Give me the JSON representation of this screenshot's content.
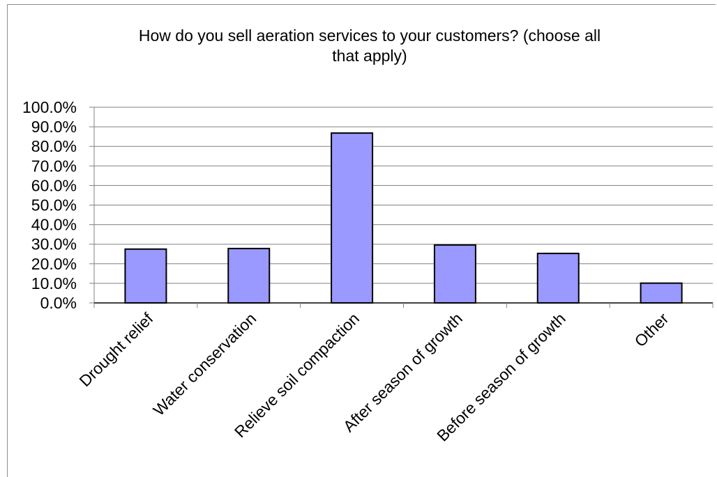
{
  "chart_data": {
    "type": "bar",
    "title": "How do you sell aeration services to your customers? (choose all\nthat apply)",
    "categories": [
      "Drought relief",
      "Water conservation",
      "Relieve soil compaction",
      "After season of growth",
      "Before season of growth",
      "Other"
    ],
    "values": [
      0.275,
      0.278,
      0.868,
      0.296,
      0.253,
      0.101
    ],
    "ylim": [
      0,
      1.0
    ],
    "yticks": [
      "0.0%",
      "10.0%",
      "20.0%",
      "30.0%",
      "40.0%",
      "50.0%",
      "60.0%",
      "70.0%",
      "80.0%",
      "90.0%",
      "100.0%"
    ],
    "xlabel": "",
    "ylabel": "",
    "grid": true,
    "bar_color": "#9999ff",
    "bar_border_color": "#000000",
    "gridline_color": "#808080"
  }
}
